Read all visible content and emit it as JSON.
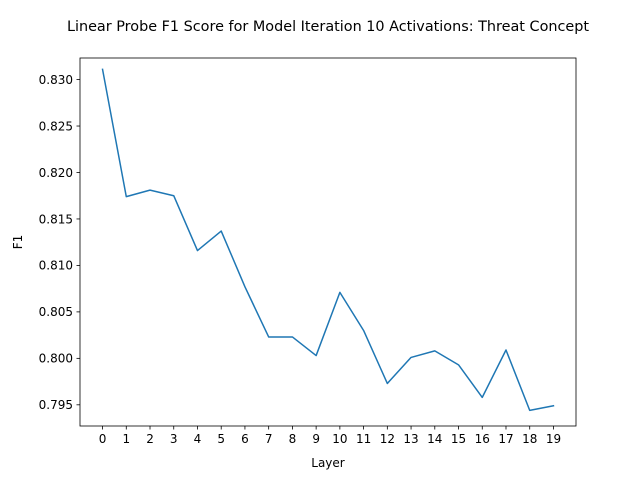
{
  "chart_data": {
    "type": "line",
    "title": "Linear Probe F1 Score for Model Iteration 10 Activations: Threat Concept",
    "xlabel": "Layer",
    "ylabel": "F1",
    "x": [
      0,
      1,
      2,
      3,
      4,
      5,
      6,
      7,
      8,
      9,
      10,
      11,
      12,
      13,
      14,
      15,
      16,
      17,
      18,
      19
    ],
    "series": [
      {
        "color": "#1f77b4",
        "values": [
          0.8311,
          0.8174,
          0.8181,
          0.8175,
          0.8116,
          0.8137,
          0.8077,
          0.8023,
          0.8023,
          0.8003,
          0.8071,
          0.803,
          0.7973,
          0.8001,
          0.8008,
          0.7993,
          0.7958,
          0.8009,
          0.7944,
          0.7949
        ]
      }
    ],
    "xlim": [
      -0.95,
      19.95
    ],
    "ylim": [
      0.79272,
      0.83232
    ],
    "xticks": [
      "0",
      "1",
      "2",
      "3",
      "4",
      "5",
      "6",
      "7",
      "8",
      "9",
      "10",
      "11",
      "12",
      "13",
      "14",
      "15",
      "16",
      "17",
      "18",
      "19"
    ],
    "yticks": [
      0.795,
      0.8,
      0.805,
      0.81,
      0.815,
      0.82,
      0.825,
      0.83
    ],
    "ytick_labels": [
      "0.795",
      "0.800",
      "0.805",
      "0.810",
      "0.815",
      "0.820",
      "0.825",
      "0.830"
    ],
    "grid": false,
    "legend": false
  }
}
